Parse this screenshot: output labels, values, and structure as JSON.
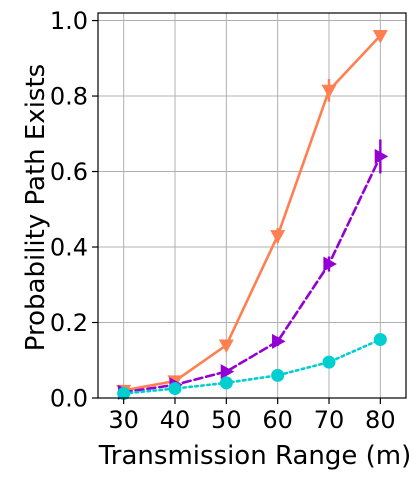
{
  "chart_data": {
    "type": "line",
    "title": "",
    "xlabel": "Transmission Range (m)",
    "ylabel": "Probability Path Exists",
    "x": [
      30,
      40,
      50,
      60,
      70,
      80
    ],
    "xticks": [
      30,
      40,
      50,
      60,
      70,
      80
    ],
    "yticks": [
      0.0,
      0.2,
      0.4,
      0.6,
      0.8,
      1.0
    ],
    "xtick_labels": [
      "30",
      "40",
      "50",
      "60",
      "70",
      "80"
    ],
    "ytick_labels": [
      "0.0",
      "0.2",
      "0.4",
      "0.6",
      "0.8",
      "1.0"
    ],
    "xlim": [
      25,
      85
    ],
    "ylim": [
      0.0,
      1.02
    ],
    "grid": true,
    "legend": "none",
    "series": [
      {
        "color": "#ff7f50",
        "linestyle": "solid",
        "marker": "triangle-down",
        "values": [
          0.02,
          0.045,
          0.14,
          0.43,
          0.815,
          0.96
        ],
        "errors": [
          0.005,
          0.008,
          0.015,
          0.02,
          0.03,
          0.01
        ]
      },
      {
        "color": "#9400d3",
        "linestyle": "dashed",
        "marker": "triangle-right",
        "values": [
          0.015,
          0.035,
          0.07,
          0.15,
          0.355,
          0.64
        ],
        "errors": [
          0.003,
          0.005,
          0.008,
          0.012,
          0.02,
          0.045
        ]
      },
      {
        "color": "#00ced1",
        "linestyle": "dotted",
        "marker": "circle",
        "values": [
          0.012,
          0.025,
          0.04,
          0.06,
          0.095,
          0.155
        ],
        "errors": [
          0.002,
          0.003,
          0.004,
          0.005,
          0.006,
          0.008
        ]
      }
    ]
  }
}
